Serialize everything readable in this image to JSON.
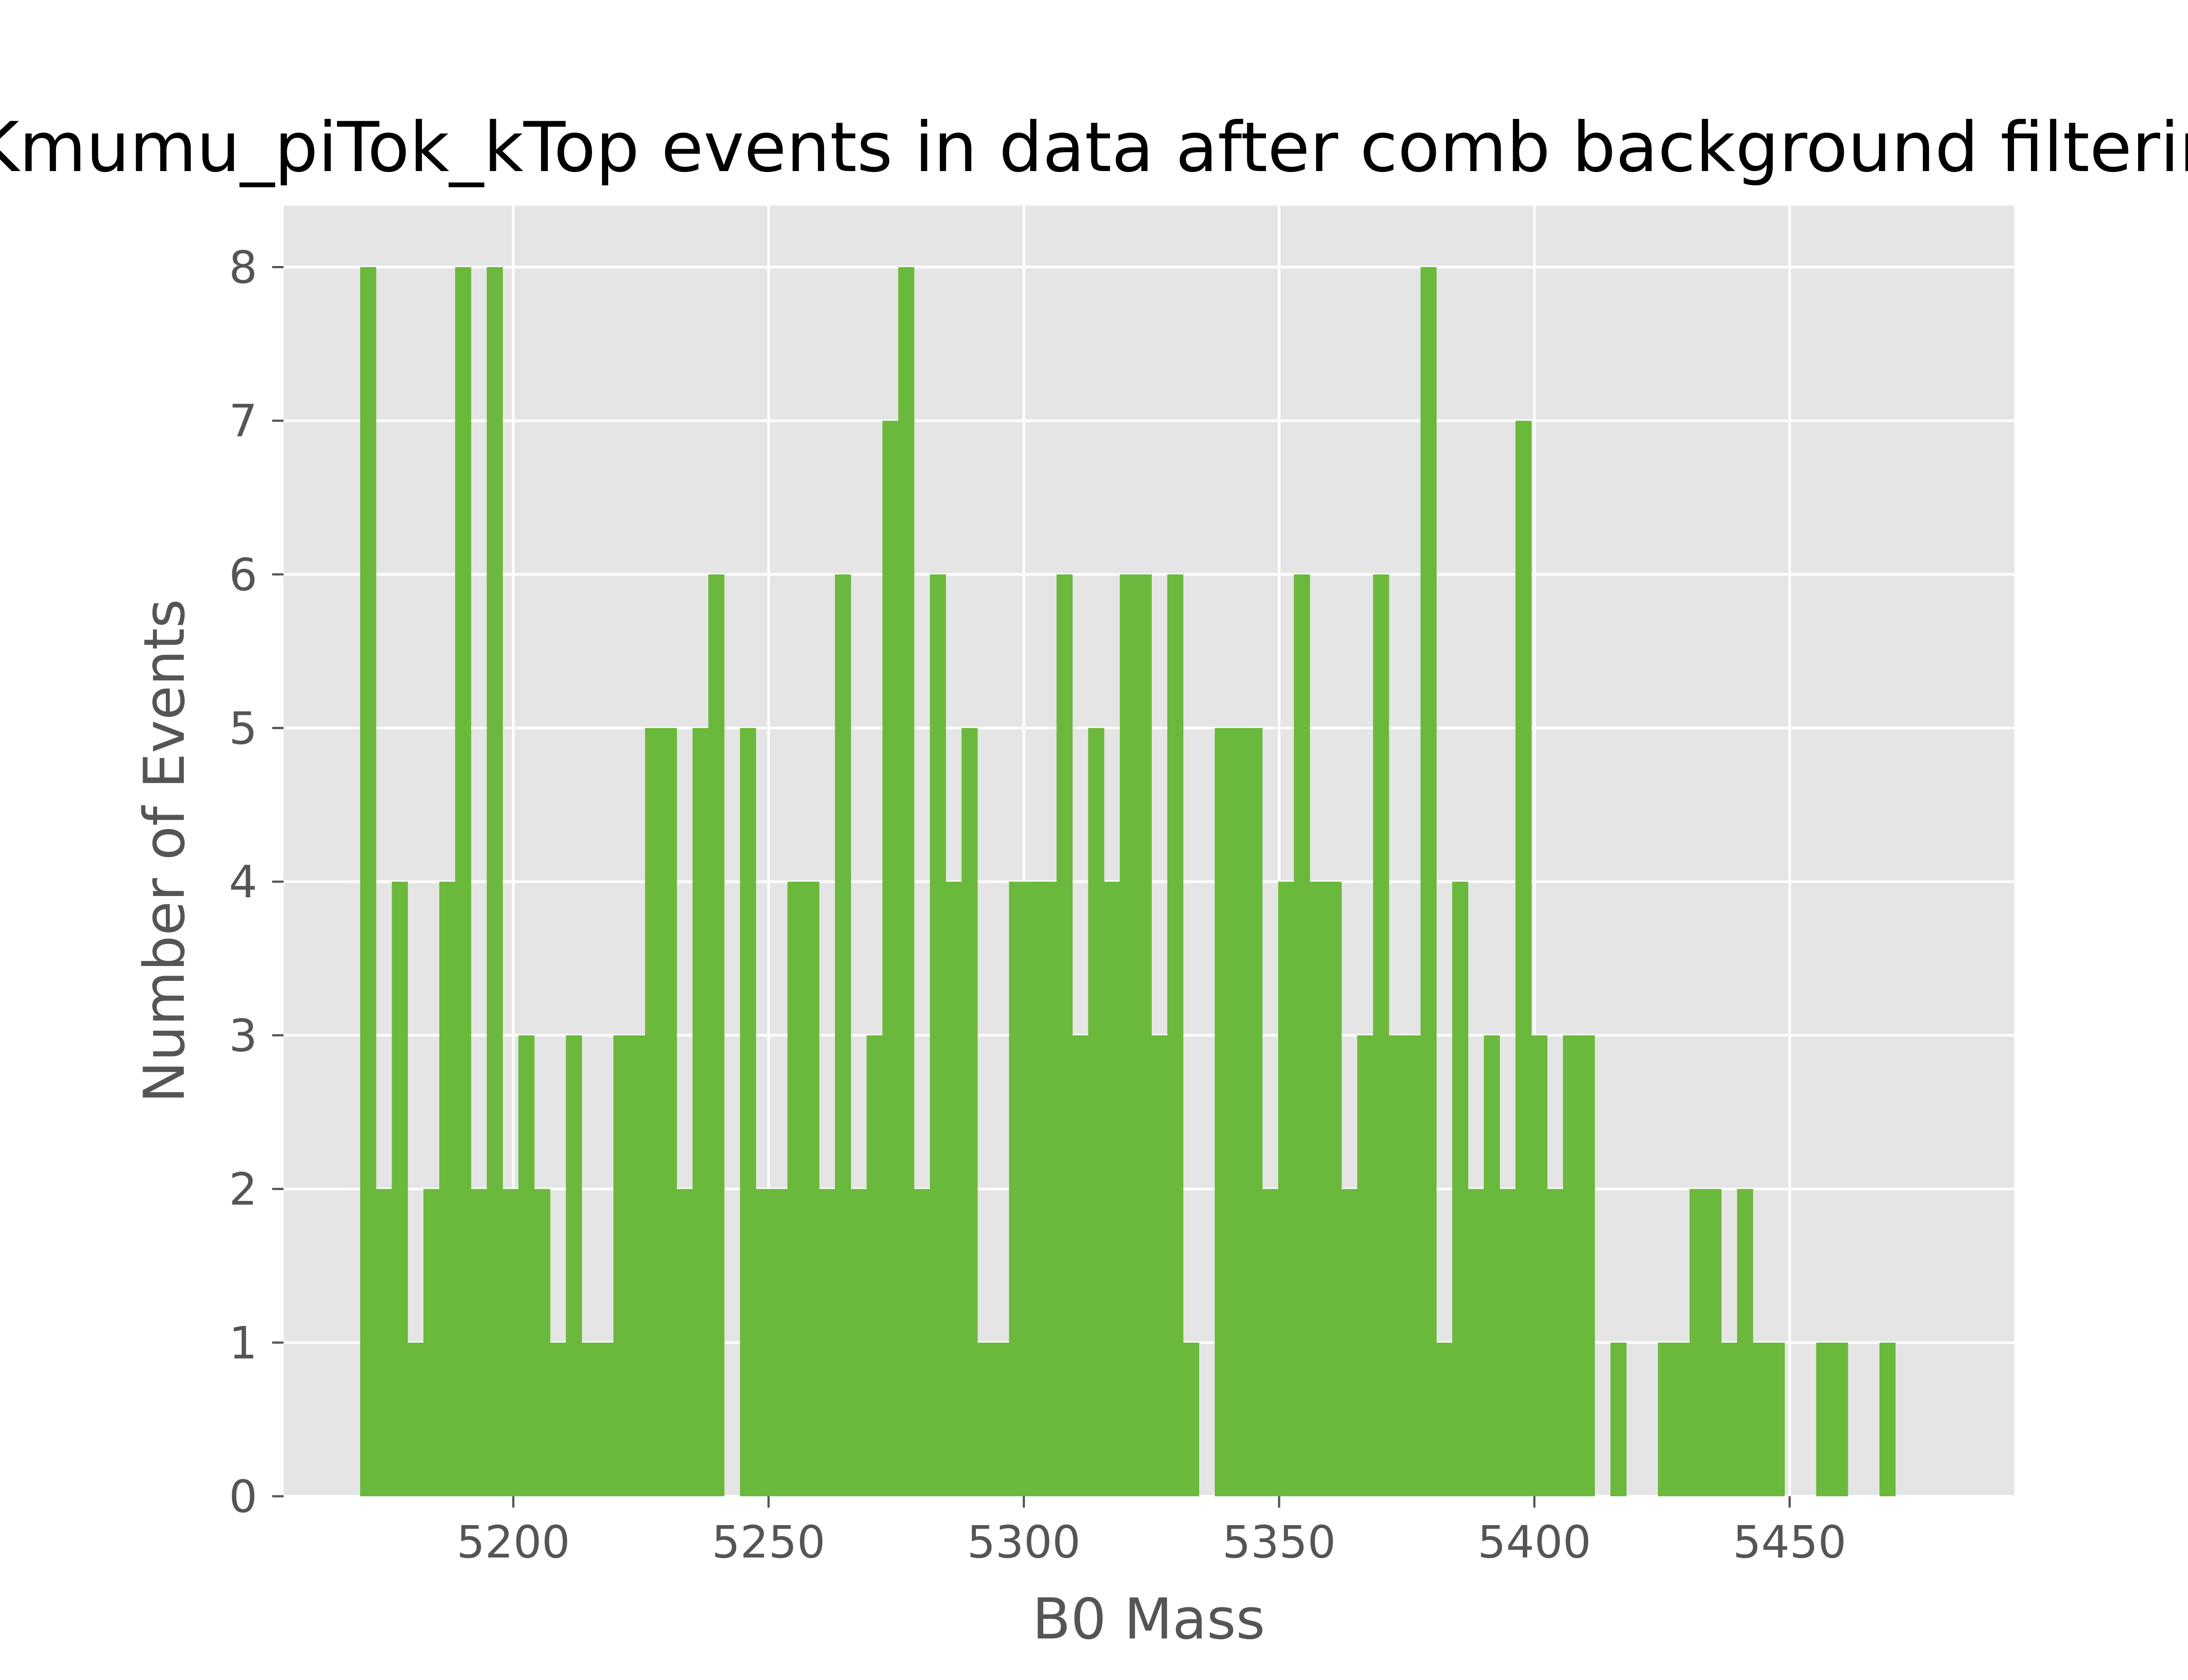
{
  "chart_data": {
    "type": "bar",
    "title": "Kmumu_piTok_kTop events in data after comb background filtering",
    "xlabel": "B0 Mass",
    "ylabel": "Number of Events",
    "xlim": [
      5155,
      5494
    ],
    "ylim": [
      0,
      8.4
    ],
    "xticks": [
      5200,
      5250,
      5300,
      5350,
      5400,
      5450
    ],
    "yticks": [
      0,
      1,
      2,
      3,
      4,
      5,
      6,
      7,
      8
    ],
    "grid": true,
    "bin_start": 5170,
    "bin_width": 3.1,
    "bar_color": "#6ab93c",
    "plot_background": "#e5e5e5",
    "grid_color": "#ffffff",
    "values": [
      8,
      2,
      4,
      1,
      2,
      4,
      8,
      2,
      8,
      2,
      3,
      2,
      1,
      3,
      1,
      1,
      3,
      3,
      5,
      5,
      2,
      5,
      6,
      0,
      5,
      2,
      2,
      4,
      4,
      2,
      6,
      2,
      3,
      7,
      8,
      2,
      6,
      4,
      5,
      1,
      1,
      4,
      4,
      4,
      6,
      3,
      5,
      4,
      6,
      6,
      3,
      6,
      1,
      0,
      5,
      5,
      5,
      2,
      4,
      6,
      4,
      4,
      2,
      3,
      6,
      3,
      3,
      8,
      1,
      4,
      2,
      3,
      2,
      7,
      3,
      2,
      3,
      3,
      0,
      1,
      0,
      0,
      1,
      1,
      2,
      2,
      1,
      2,
      1,
      1,
      0,
      0,
      1,
      1,
      0,
      0,
      1
    ]
  }
}
